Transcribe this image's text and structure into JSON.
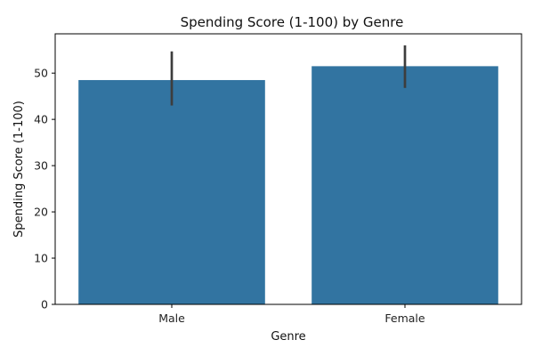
{
  "chart_data": {
    "type": "bar",
    "title": "Spending Score (1-100) by Genre",
    "xlabel": "Genre",
    "ylabel": "Spending Score (1-100)",
    "categories": [
      "Male",
      "Female"
    ],
    "values": [
      48.5,
      51.5
    ],
    "error_low": [
      43.0,
      46.8
    ],
    "error_high": [
      54.7,
      56.0
    ],
    "ylim": [
      0,
      58.5
    ],
    "yticks": [
      0,
      10,
      20,
      30,
      40,
      50
    ],
    "grid": false,
    "bar_color": "#3274a1",
    "error_color": "#3d3d3d"
  }
}
